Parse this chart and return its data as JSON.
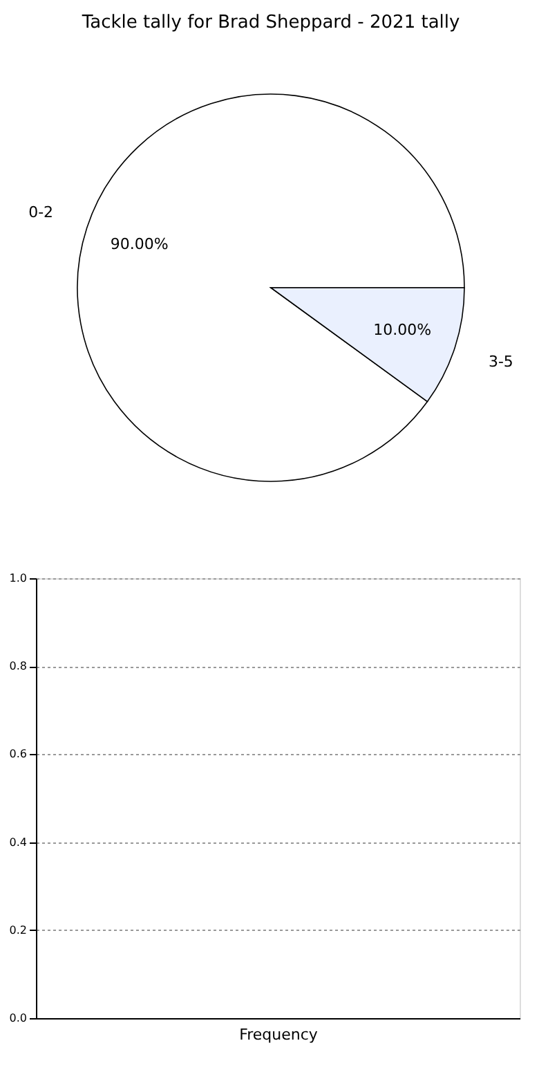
{
  "chart_data": [
    {
      "type": "pie",
      "title": "Tackle tally for Brad Sheppard - 2021 tally",
      "categories": [
        "0-2",
        "3-5"
      ],
      "values": [
        90,
        10
      ],
      "colors": [
        "#ffffff",
        "#eaf0fe"
      ],
      "value_labels": [
        "90.00%",
        "10.00%"
      ]
    },
    {
      "type": "bar",
      "xlabel": "Frequency",
      "categories": [
        null
      ],
      "values": [
        null
      ],
      "ylim": [
        0,
        1
      ],
      "yticks": [
        {
          "value": 0,
          "label": "0.0"
        },
        {
          "value": 0.2,
          "label": "0.2"
        },
        {
          "value": 0.4,
          "label": "0.4"
        },
        {
          "value": 0.6,
          "label": "0.6"
        },
        {
          "value": 0.8,
          "label": "0.8"
        },
        {
          "value": 1,
          "label": "1.0"
        }
      ],
      "grid": "y"
    }
  ]
}
